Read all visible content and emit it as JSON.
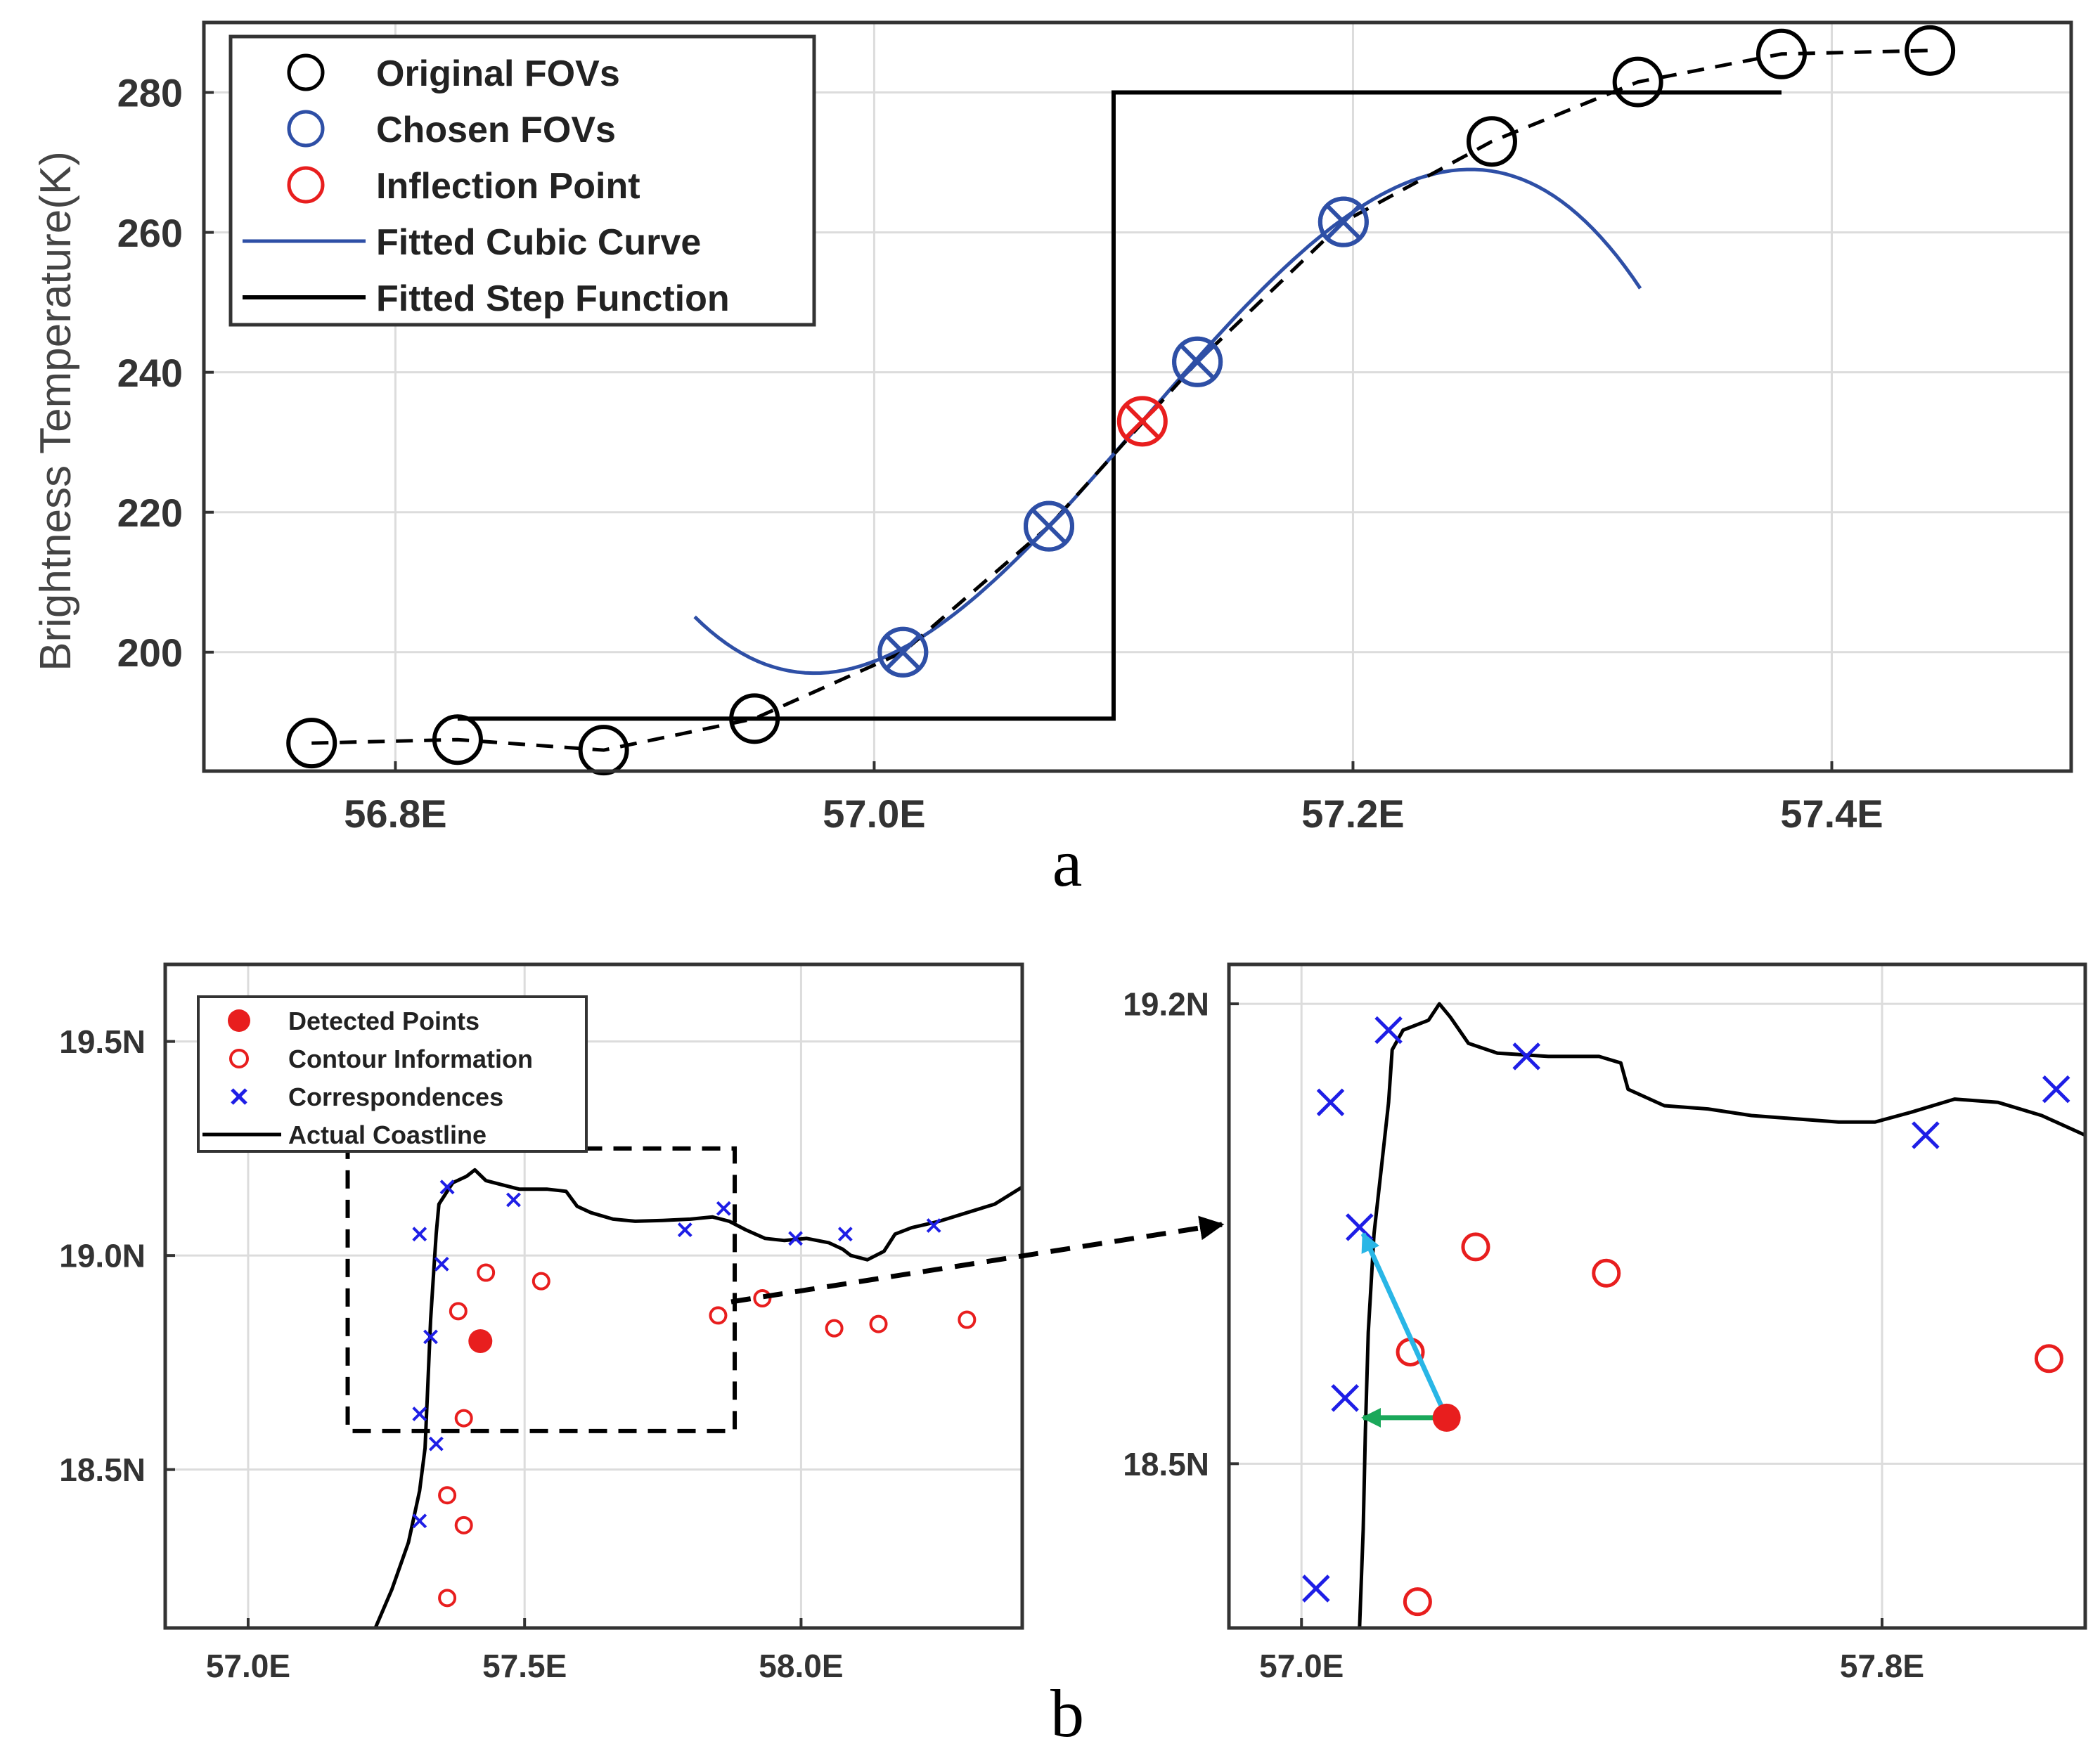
{
  "figure": {
    "panel_a_label": "a",
    "panel_b_label": "b"
  },
  "chart_data": [
    {
      "id": "a",
      "type": "line",
      "title": "",
      "xlabel": "",
      "ylabel": "Brightness Temperature(K)",
      "xlim": [
        56.72,
        57.5
      ],
      "ylim": [
        183,
        290
      ],
      "xticks": [
        56.8,
        57.0,
        57.2,
        57.4
      ],
      "xtick_labels": [
        "56.8E",
        "57.0E",
        "57.2E",
        "57.4E"
      ],
      "yticks": [
        200,
        220,
        240,
        260,
        280
      ],
      "ytick_labels": [
        "200",
        "220",
        "240",
        "260",
        "280"
      ],
      "grid": true,
      "legend_position": "top-left",
      "series": [
        {
          "name": "Original FOVs",
          "marker": "circle",
          "color": "#000000",
          "line": "dashed",
          "x": [
            56.765,
            56.826,
            56.887,
            56.95,
            57.012,
            57.073,
            57.135,
            57.196,
            57.258,
            57.319,
            57.379,
            57.441
          ],
          "y": [
            187,
            187.5,
            186,
            190.5,
            200,
            218,
            241.5,
            261.5,
            273,
            281.5,
            285.5,
            286
          ]
        },
        {
          "name": "Chosen FOVs",
          "marker": "circle-x",
          "color": "#2e4fa6",
          "x": [
            57.012,
            57.073,
            57.135,
            57.196
          ],
          "y": [
            200,
            218,
            241.5,
            261.5
          ]
        },
        {
          "name": "Inflection Point",
          "marker": "circle-x",
          "color": "#e81e1e",
          "x": [
            57.112
          ],
          "y": [
            233
          ]
        },
        {
          "name": "Fitted Cubic Curve",
          "color": "#2e4fa6",
          "line": "solid",
          "x_range": [
            56.925,
            57.32
          ],
          "inflection_x": 57.112,
          "inflection_y": 233,
          "min_x": 56.975,
          "min_y": 197
        },
        {
          "name": "Fitted Step Function",
          "color": "#000000",
          "line": "solid",
          "x": [
            56.826,
            57.1,
            57.1,
            57.379
          ],
          "y": [
            190.5,
            190.5,
            280,
            280
          ]
        }
      ]
    },
    {
      "id": "b-left",
      "type": "scatter",
      "xlabel": "",
      "ylabel": "",
      "xlim": [
        56.85,
        58.4
      ],
      "ylim": [
        18.13,
        19.68
      ],
      "xticks": [
        57.0,
        57.5,
        58.0
      ],
      "xtick_labels": [
        "57.0E",
        "57.5E",
        "58.0E"
      ],
      "yticks": [
        18.5,
        19.0,
        19.5
      ],
      "ytick_labels": [
        "18.5N",
        "19.0N",
        "19.5N"
      ],
      "grid": true,
      "legend_position": "top-left",
      "zoom_box": {
        "x": [
          57.18,
          57.88
        ],
        "y": [
          18.59,
          19.25
        ]
      },
      "series": [
        {
          "name": "Detected Points",
          "marker": "filled-circle",
          "color": "#e81e1e",
          "points": [
            [
              57.42,
              18.8
            ]
          ]
        },
        {
          "name": "Contour Information",
          "marker": "circle",
          "color": "#e81e1e",
          "points": [
            [
              57.43,
              18.96
            ],
            [
              57.53,
              18.94
            ],
            [
              57.38,
              18.87
            ],
            [
              57.39,
              18.62
            ],
            [
              57.36,
              18.44
            ],
            [
              57.39,
              18.37
            ],
            [
              57.36,
              18.2
            ],
            [
              57.85,
              18.86
            ],
            [
              57.93,
              18.9
            ],
            [
              58.06,
              18.83
            ],
            [
              58.14,
              18.84
            ],
            [
              58.3,
              18.85
            ]
          ]
        },
        {
          "name": "Correspondences",
          "marker": "x",
          "color": "#1e1ee6",
          "points": [
            [
              57.31,
              19.05
            ],
            [
              57.36,
              19.16
            ],
            [
              57.35,
              18.98
            ],
            [
              57.33,
              18.81
            ],
            [
              57.31,
              18.63
            ],
            [
              57.34,
              18.56
            ],
            [
              57.31,
              18.38
            ],
            [
              57.48,
              19.13
            ],
            [
              57.79,
              19.06
            ],
            [
              57.86,
              19.11
            ],
            [
              57.99,
              19.04
            ],
            [
              58.08,
              19.05
            ],
            [
              58.24,
              19.07
            ]
          ]
        },
        {
          "name": "Actual Coastline",
          "color": "#000000",
          "line": "solid",
          "points": [
            [
              57.23,
              18.13
            ],
            [
              57.26,
              18.22
            ],
            [
              57.29,
              18.33
            ],
            [
              57.31,
              18.45
            ],
            [
              57.32,
              18.55
            ],
            [
              57.325,
              18.7
            ],
            [
              57.33,
              18.85
            ],
            [
              57.335,
              18.95
            ],
            [
              57.34,
              19.05
            ],
            [
              57.345,
              19.12
            ],
            [
              57.37,
              19.17
            ],
            [
              57.395,
              19.185
            ],
            [
              57.41,
              19.2
            ],
            [
              57.43,
              19.175
            ],
            [
              57.46,
              19.165
            ],
            [
              57.49,
              19.155
            ],
            [
              57.54,
              19.155
            ],
            [
              57.575,
              19.15
            ],
            [
              57.595,
              19.115
            ],
            [
              57.62,
              19.1
            ],
            [
              57.66,
              19.085
            ],
            [
              57.7,
              19.08
            ],
            [
              57.75,
              19.082
            ],
            [
              57.8,
              19.085
            ],
            [
              57.84,
              19.09
            ],
            [
              57.87,
              19.08
            ],
            [
              57.9,
              19.06
            ],
            [
              57.935,
              19.04
            ],
            [
              57.97,
              19.035
            ],
            [
              58.01,
              19.04
            ],
            [
              58.05,
              19.03
            ],
            [
              58.075,
              19.015
            ],
            [
              58.09,
              19.0
            ],
            [
              58.12,
              18.99
            ],
            [
              58.15,
              19.01
            ],
            [
              58.17,
              19.05
            ],
            [
              58.2,
              19.065
            ],
            [
              58.25,
              19.08
            ],
            [
              58.3,
              19.1
            ],
            [
              58.35,
              19.12
            ],
            [
              58.4,
              19.16
            ]
          ]
        }
      ]
    },
    {
      "id": "b-right",
      "type": "scatter",
      "xlabel": "",
      "ylabel": "",
      "xlim": [
        56.9,
        58.08
      ],
      "ylim": [
        18.25,
        19.26
      ],
      "xticks": [
        57.0,
        57.8
      ],
      "xtick_labels": [
        "57.0E",
        "57.8E"
      ],
      "yticks": [
        18.5,
        19.2
      ],
      "ytick_labels": [
        "18.5N",
        "19.2N"
      ],
      "grid": true,
      "series": [
        {
          "name": "Detected Points",
          "marker": "filled-circle",
          "color": "#e81e1e",
          "points": [
            [
              57.2,
              18.57
            ]
          ]
        },
        {
          "name": "Contour Information",
          "marker": "circle",
          "color": "#e81e1e",
          "points": [
            [
              57.24,
              18.83
            ],
            [
              57.42,
              18.79
            ],
            [
              57.15,
              18.67
            ],
            [
              57.16,
              18.29
            ],
            [
              58.03,
              18.66
            ]
          ]
        },
        {
          "name": "Correspondences",
          "marker": "x",
          "color": "#1e1ee6",
          "points": [
            [
              57.04,
              19.05
            ],
            [
              57.12,
              19.16
            ],
            [
              57.31,
              19.12
            ],
            [
              57.08,
              18.86
            ],
            [
              57.06,
              18.6
            ],
            [
              57.02,
              18.31
            ],
            [
              57.86,
              19.0
            ],
            [
              58.04,
              19.07
            ]
          ]
        },
        {
          "name": "Actual Coastline",
          "color": "#000000",
          "line": "solid",
          "points": [
            [
              57.08,
              18.25
            ],
            [
              57.085,
              18.4
            ],
            [
              57.088,
              18.55
            ],
            [
              57.092,
              18.7
            ],
            [
              57.1,
              18.85
            ],
            [
              57.11,
              18.95
            ],
            [
              57.12,
              19.05
            ],
            [
              57.125,
              19.13
            ],
            [
              57.14,
              19.16
            ],
            [
              57.175,
              19.175
            ],
            [
              57.19,
              19.2
            ],
            [
              57.205,
              19.18
            ],
            [
              57.23,
              19.14
            ],
            [
              57.27,
              19.125
            ],
            [
              57.34,
              19.12
            ],
            [
              57.41,
              19.12
            ],
            [
              57.44,
              19.11
            ],
            [
              57.45,
              19.07
            ],
            [
              57.5,
              19.045
            ],
            [
              57.56,
              19.04
            ],
            [
              57.62,
              19.03
            ],
            [
              57.68,
              19.025
            ],
            [
              57.74,
              19.02
            ],
            [
              57.79,
              19.02
            ],
            [
              57.84,
              19.035
            ],
            [
              57.9,
              19.055
            ],
            [
              57.96,
              19.05
            ],
            [
              58.02,
              19.03
            ],
            [
              58.08,
              19.0
            ]
          ]
        }
      ],
      "arrows": [
        {
          "name": "vector-to-correspondence",
          "color": "#29b6e6",
          "from": [
            57.2,
            18.57
          ],
          "to": [
            57.085,
            18.85
          ]
        },
        {
          "name": "vector-to-coastline",
          "color": "#1aa85a",
          "from": [
            57.2,
            18.57
          ],
          "to": [
            57.085,
            18.57
          ]
        }
      ]
    }
  ]
}
